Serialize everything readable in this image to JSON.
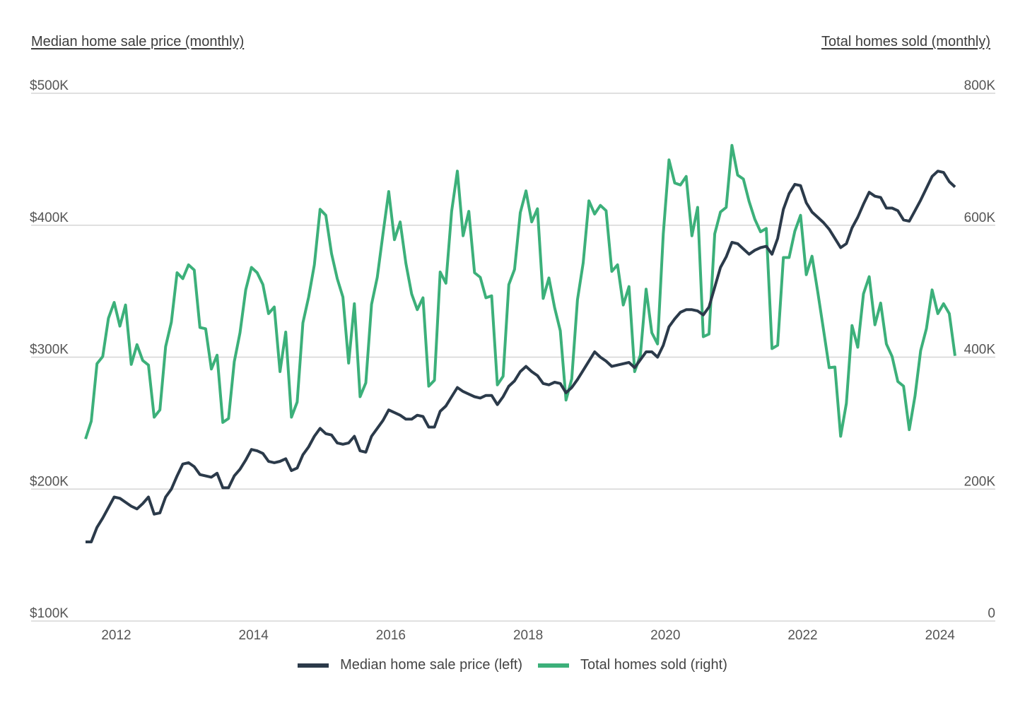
{
  "chart_data": {
    "type": "line",
    "left_axis_title": "Median home sale price (monthly)",
    "right_axis_title": "Total homes sold (monthly)",
    "left_ylim": [
      100,
      500
    ],
    "right_ylim": [
      0,
      800
    ],
    "left_ticks": [
      "$100K",
      "$200K",
      "$300K",
      "$400K",
      "$500K"
    ],
    "right_ticks": [
      "0",
      "200K",
      "400K",
      "600K",
      "800K"
    ],
    "x_ticks": [
      "2012",
      "2014",
      "2016",
      "2018",
      "2020",
      "2022",
      "2024"
    ],
    "grid": true,
    "legend_position": "bottom",
    "units": "thousands",
    "dates": [
      "2012-02",
      "2012-03",
      "2012-04",
      "2012-05",
      "2012-06",
      "2012-07",
      "2012-08",
      "2012-09",
      "2012-10",
      "2012-11",
      "2012-12",
      "2013-01",
      "2013-02",
      "2013-03",
      "2013-04",
      "2013-05",
      "2013-06",
      "2013-07",
      "2013-08",
      "2013-09",
      "2013-10",
      "2013-11",
      "2013-12",
      "2014-01",
      "2014-02",
      "2014-03",
      "2014-04",
      "2014-05",
      "2014-06",
      "2014-07",
      "2014-08",
      "2014-09",
      "2014-10",
      "2014-11",
      "2014-12",
      "2015-01",
      "2015-02",
      "2015-03",
      "2015-04",
      "2015-05",
      "2015-06",
      "2015-07",
      "2015-08",
      "2015-09",
      "2015-10",
      "2015-11",
      "2015-12",
      "2016-01",
      "2016-02",
      "2016-03",
      "2016-04",
      "2016-05",
      "2016-06",
      "2016-07",
      "2016-08",
      "2016-09",
      "2016-10",
      "2016-11",
      "2016-12",
      "2017-01",
      "2017-02",
      "2017-03",
      "2017-04",
      "2017-05",
      "2017-06",
      "2017-07",
      "2017-08",
      "2017-09",
      "2017-10",
      "2017-11",
      "2017-12",
      "2018-01",
      "2018-02",
      "2018-03",
      "2018-04",
      "2018-05",
      "2018-06",
      "2018-07",
      "2018-08",
      "2018-09",
      "2018-10",
      "2018-11",
      "2018-12",
      "2019-01",
      "2019-02",
      "2019-03",
      "2019-04",
      "2019-05",
      "2019-06",
      "2019-07",
      "2019-08",
      "2019-09",
      "2019-10",
      "2019-11",
      "2019-12",
      "2020-01",
      "2020-02",
      "2020-03",
      "2020-04",
      "2020-05",
      "2020-06",
      "2020-07",
      "2020-08",
      "2020-09",
      "2020-10",
      "2020-11",
      "2020-12",
      "2021-01",
      "2021-02",
      "2021-03",
      "2021-04",
      "2021-05",
      "2021-06",
      "2021-07",
      "2021-08",
      "2021-09",
      "2021-10",
      "2021-11",
      "2021-12",
      "2022-01",
      "2022-02",
      "2022-03",
      "2022-04",
      "2022-05",
      "2022-06",
      "2022-07",
      "2022-08",
      "2022-09",
      "2022-10",
      "2022-11",
      "2022-12",
      "2023-01",
      "2023-02",
      "2023-03",
      "2023-04",
      "2023-05",
      "2023-06",
      "2023-07",
      "2023-08",
      "2023-09",
      "2023-10",
      "2023-11",
      "2023-12",
      "2024-01",
      "2024-02",
      "2024-03",
      "2024-04",
      "2024-05",
      "2024-06",
      "2024-07",
      "2024-08",
      "2024-09",
      "2024-10"
    ],
    "series": [
      {
        "name": "Median home sale price (left)",
        "axis": "left",
        "color": "#2b3a4a",
        "values": [
          160,
          160,
          171,
          178,
          186,
          194,
          193,
          190,
          187,
          185,
          189,
          194,
          181,
          182,
          194,
          200,
          210,
          219,
          220,
          217,
          211,
          210,
          209,
          212,
          201,
          201,
          210,
          215,
          222,
          230,
          229,
          227,
          221,
          220,
          221,
          223,
          214,
          216,
          226,
          232,
          240,
          246,
          242,
          241,
          235,
          234,
          235,
          240,
          229,
          228,
          240,
          246,
          252,
          260,
          258,
          256,
          253,
          253,
          256,
          255,
          247,
          247,
          259,
          263,
          270,
          277,
          274,
          272,
          270,
          269,
          271,
          271,
          264,
          270,
          278,
          282,
          289,
          293,
          289,
          286,
          280,
          279,
          281,
          280,
          273,
          277,
          283,
          290,
          297,
          304,
          300,
          297,
          293,
          294,
          295,
          296,
          292,
          298,
          304,
          304,
          300,
          309,
          323,
          329,
          334,
          336,
          336,
          335,
          332,
          338,
          353,
          368,
          376,
          387,
          386,
          382,
          378,
          381,
          383,
          384,
          378,
          390,
          412,
          424,
          431,
          430,
          417,
          410,
          406,
          402,
          397,
          390,
          383,
          386,
          398,
          406,
          416,
          425,
          422,
          421,
          413,
          413,
          411,
          404,
          403,
          411,
          419,
          428,
          437,
          441,
          440,
          433,
          429
        ]
      },
      {
        "name": "Total homes sold (right)",
        "axis": "right",
        "color": "#3cb07a",
        "values": [
          276,
          303,
          390,
          401,
          459,
          483,
          447,
          479,
          389,
          419,
          395,
          388,
          309,
          320,
          416,
          453,
          528,
          519,
          540,
          532,
          445,
          443,
          382,
          403,
          301,
          307,
          393,
          437,
          502,
          536,
          528,
          510,
          466,
          476,
          378,
          438,
          309,
          332,
          452,
          491,
          540,
          624,
          615,
          557,
          519,
          491,
          391,
          481,
          340,
          361,
          480,
          521,
          587,
          651,
          578,
          605,
          542,
          496,
          472,
          490,
          356,
          365,
          529,
          512,
          621,
          682,
          584,
          621,
          528,
          521,
          490,
          493,
          358,
          371,
          510,
          533,
          619,
          652,
          605,
          625,
          489,
          520,
          475,
          440,
          335,
          367,
          487,
          543,
          637,
          617,
          630,
          622,
          530,
          540,
          479,
          507,
          378,
          403,
          503,
          437,
          420,
          587,
          699,
          664,
          661,
          674,
          584,
          627,
          431,
          435,
          587,
          620,
          627,
          721,
          676,
          670,
          636,
          609,
          590,
          595,
          413,
          418,
          551,
          551,
          591,
          615,
          525,
          553,
          499,
          442,
          384,
          385,
          280,
          330,
          448,
          415,
          496,
          522,
          449,
          482,
          420,
          401,
          363,
          356,
          290,
          341,
          410,
          443,
          502,
          466,
          481,
          466,
          402
        ]
      }
    ]
  }
}
